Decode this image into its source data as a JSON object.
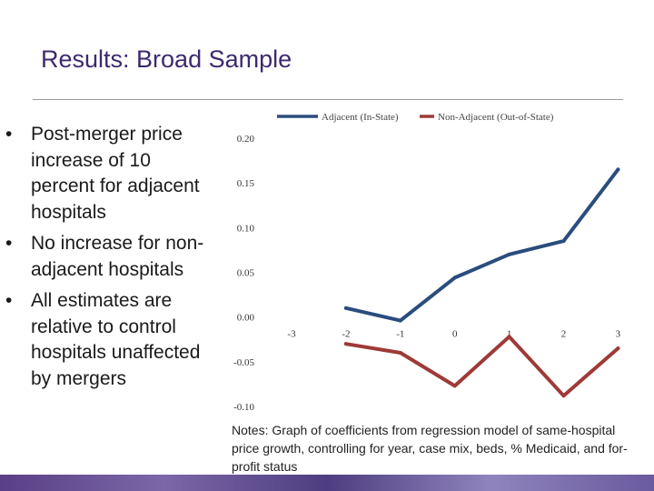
{
  "slide": {
    "title": "Results: Broad Sample",
    "bullets": [
      "Post-merger price increase of 10 percent for adjacent hospitals",
      "No increase for non-adjacent hospitals",
      "All estimates are relative to control hospitals unaffected by mergers"
    ],
    "bullet_glyph": "•",
    "notes": "Notes: Graph of coefficients from regression model of same-hospital price growth, controlling for year, case mix, beds, % Medicaid, and for-profit status"
  },
  "colors": {
    "title": "#3d2a6e",
    "adjacent": "#2a4d7e",
    "non_adjacent": "#9e3a37"
  },
  "chart_data": {
    "type": "line",
    "title": "",
    "xlabel": "",
    "ylabel": "",
    "categories": [
      "-3",
      "-2",
      "-1",
      "0",
      "1",
      "2",
      "3"
    ],
    "ylim": [
      -0.1,
      0.2
    ],
    "yticks": [
      0.2,
      0.15,
      0.1,
      0.05,
      0.0,
      -0.05,
      -0.1
    ],
    "ytick_labels": [
      "0.20",
      "0.15",
      "0.10",
      "0.05",
      "0.00",
      "-0.05",
      "-0.10"
    ],
    "legend_position": "top",
    "series": [
      {
        "name": "Adjacent (In-State)",
        "color": "#2a4d7e",
        "values": [
          null,
          0.01,
          -0.004,
          0.044,
          0.07,
          0.085,
          0.165
        ]
      },
      {
        "name": "Non-Adjacent (Out-of-State)",
        "color": "#9e3a37",
        "values": [
          null,
          -0.03,
          -0.04,
          -0.077,
          -0.022,
          -0.088,
          -0.035
        ]
      }
    ]
  }
}
